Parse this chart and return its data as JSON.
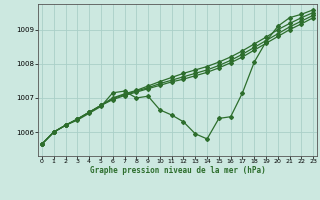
{
  "background_color": "#cce8e0",
  "grid_color": "#aacfc8",
  "line_color": "#2d6e2d",
  "xlabel": "Graphe pression niveau de la mer (hPa)",
  "ylim": [
    1005.3,
    1009.75
  ],
  "xlim": [
    -0.3,
    23.3
  ],
  "yticks": [
    1006,
    1007,
    1008,
    1009
  ],
  "xticks": [
    0,
    1,
    2,
    3,
    4,
    5,
    6,
    7,
    8,
    9,
    10,
    11,
    12,
    13,
    14,
    15,
    16,
    17,
    18,
    19,
    20,
    21,
    22,
    23
  ],
  "series": {
    "volatile": [
      1005.65,
      1006.0,
      1006.2,
      1006.35,
      1006.55,
      1006.75,
      1007.15,
      1007.2,
      1007.0,
      1007.05,
      1006.65,
      1006.5,
      1006.3,
      1005.95,
      1005.8,
      1006.4,
      1006.45,
      1007.15,
      1008.05,
      1008.65,
      1009.1,
      1009.35,
      1009.45,
      1009.58
    ],
    "smooth1": [
      1005.65,
      1006.0,
      1006.2,
      1006.38,
      1006.58,
      1006.78,
      1007.0,
      1007.12,
      1007.22,
      1007.35,
      1007.48,
      1007.6,
      1007.72,
      1007.82,
      1007.92,
      1008.05,
      1008.2,
      1008.38,
      1008.58,
      1008.78,
      1009.0,
      1009.18,
      1009.35,
      1009.5
    ],
    "smooth2": [
      1005.65,
      1006.0,
      1006.2,
      1006.38,
      1006.58,
      1006.78,
      1006.98,
      1007.1,
      1007.2,
      1007.3,
      1007.42,
      1007.52,
      1007.62,
      1007.72,
      1007.82,
      1007.95,
      1008.1,
      1008.28,
      1008.48,
      1008.68,
      1008.88,
      1009.08,
      1009.25,
      1009.42
    ],
    "smooth3": [
      1005.65,
      1006.0,
      1006.2,
      1006.38,
      1006.58,
      1006.78,
      1006.95,
      1007.07,
      1007.17,
      1007.27,
      1007.37,
      1007.47,
      1007.55,
      1007.65,
      1007.75,
      1007.88,
      1008.03,
      1008.2,
      1008.4,
      1008.6,
      1008.8,
      1009.0,
      1009.17,
      1009.35
    ]
  },
  "marker": "D",
  "markersize": 2.0,
  "linewidth": 0.9
}
